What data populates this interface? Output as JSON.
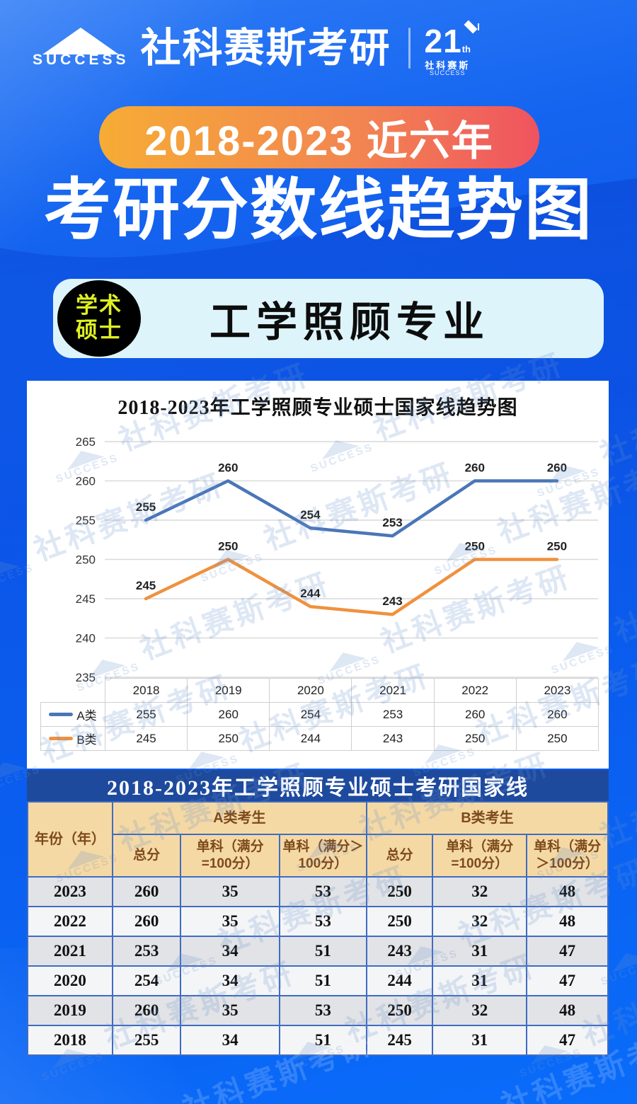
{
  "brand": {
    "name_en": "SUCCESS",
    "name_cn": "社科赛斯考研",
    "anniversary_number": "21",
    "anniversary_suffix": "th",
    "anniversary_cn": "社科赛斯",
    "anniversary_en": "SUCCESS"
  },
  "hero": {
    "pill": "2018-2023 近六年",
    "title": "考研分数线趋势图",
    "badge_line1": "学术",
    "badge_line2": "硕士",
    "subject": "工学照顾专业"
  },
  "watermark": {
    "cn": "社科赛斯考研",
    "en": "SUCCESS"
  },
  "chart": {
    "title": "2018-2023年工学照顾专业硕士国家线趋势图"
  },
  "chart_data": {
    "type": "line",
    "title": "2018-2023年工学照顾专业硕士国家线趋势图",
    "categories": [
      "2018",
      "2019",
      "2020",
      "2021",
      "2022",
      "2023"
    ],
    "series": [
      {
        "name": "A类",
        "color": "#4a76b8",
        "values": [
          255,
          260,
          254,
          253,
          260,
          260
        ]
      },
      {
        "name": "B类",
        "color": "#f0913e",
        "values": [
          245,
          250,
          244,
          243,
          250,
          250
        ]
      }
    ],
    "ylim": [
      235,
      265
    ],
    "ytick_step": 5,
    "grid": true,
    "legend_position": "bottom-data-table"
  },
  "table": {
    "banner": "2018-2023年工学照顾专业硕士考研国家线",
    "year_header": "年份（年）",
    "group_headers": [
      "A类考生",
      "B类考生"
    ],
    "sub_headers": [
      "总分",
      "单科（满分\n=100分）",
      "单科（满分\n＞100分）"
    ],
    "rows": [
      [
        "2023",
        "260",
        "35",
        "53",
        "250",
        "32",
        "48"
      ],
      [
        "2022",
        "260",
        "35",
        "53",
        "250",
        "32",
        "48"
      ],
      [
        "2021",
        "253",
        "34",
        "51",
        "243",
        "31",
        "47"
      ],
      [
        "2020",
        "254",
        "34",
        "51",
        "244",
        "31",
        "47"
      ],
      [
        "2019",
        "260",
        "35",
        "53",
        "250",
        "32",
        "48"
      ],
      [
        "2018",
        "255",
        "34",
        "51",
        "245",
        "31",
        "47"
      ]
    ]
  },
  "colors": {
    "background_blue": "#0a5eef",
    "wave_blue": "#0a4bd9",
    "pill_gradient_start": "#f6ac35",
    "pill_gradient_end": "#f0535f",
    "badge_text": "#dff021",
    "subject_panel": "#def4fb",
    "series_a": "#4a76b8",
    "series_b": "#f0913e",
    "banner_navy": "#1e4a9e",
    "header_tan": "#f5d9a4",
    "header_brown": "#7d4a1d",
    "row_gray": "#e2e3e6",
    "row_white": "#f4f5f7",
    "table_border": "#3f6cc2"
  }
}
